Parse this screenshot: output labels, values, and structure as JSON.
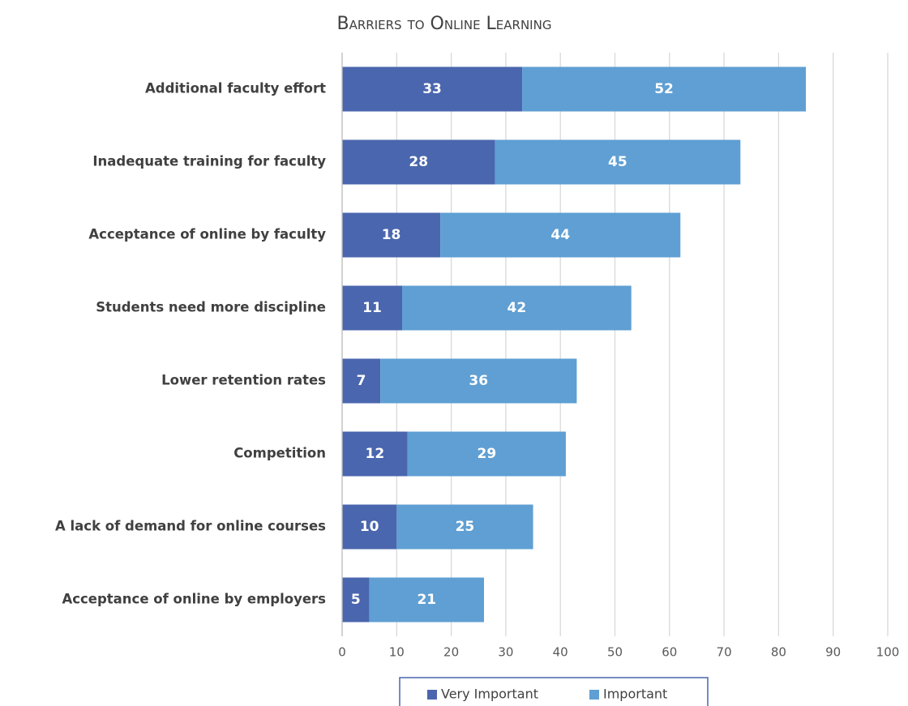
{
  "chart_data": {
    "type": "stacked_barh",
    "title": "Barriers to Online Learning",
    "categories": [
      "Additional faculty effort",
      "Inadequate training for faculty",
      "Acceptance of online by faculty",
      "Students need more discipline",
      "Lower retention rates",
      "Competition",
      "A lack of demand for online courses",
      "Acceptance of online by employers"
    ],
    "series": [
      {
        "name": "Very Important",
        "color": "#4a66ae",
        "values": [
          33,
          28,
          18,
          11,
          7,
          12,
          10,
          5
        ]
      },
      {
        "name": "Important",
        "color": "#5f9fd3",
        "values": [
          52,
          45,
          44,
          42,
          36,
          29,
          25,
          21
        ]
      }
    ],
    "xlim": [
      0,
      100
    ],
    "xticks": [
      0,
      10,
      20,
      30,
      40,
      50,
      60,
      70,
      80,
      90,
      100
    ],
    "grid": true,
    "legend": "bottom"
  }
}
